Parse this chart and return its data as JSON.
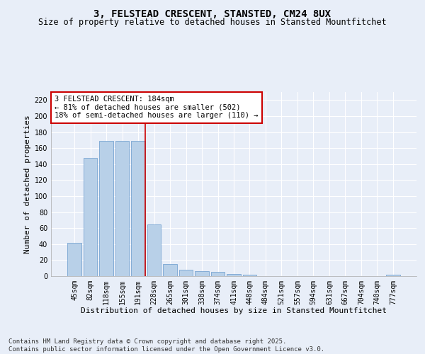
{
  "title": "3, FELSTEAD CRESCENT, STANSTED, CM24 8UX",
  "subtitle": "Size of property relative to detached houses in Stansted Mountfitchet",
  "xlabel": "Distribution of detached houses by size in Stansted Mountfitchet",
  "ylabel": "Number of detached properties",
  "categories": [
    "45sqm",
    "82sqm",
    "118sqm",
    "155sqm",
    "191sqm",
    "228sqm",
    "265sqm",
    "301sqm",
    "338sqm",
    "374sqm",
    "411sqm",
    "448sqm",
    "484sqm",
    "521sqm",
    "557sqm",
    "594sqm",
    "631sqm",
    "667sqm",
    "704sqm",
    "740sqm",
    "777sqm"
  ],
  "values": [
    42,
    148,
    169,
    169,
    169,
    65,
    15,
    8,
    6,
    5,
    3,
    2,
    0,
    0,
    0,
    0,
    0,
    0,
    0,
    0,
    2
  ],
  "bar_color": "#b8d0e8",
  "bar_edge_color": "#6699cc",
  "vline_x_index": 4,
  "vline_color": "#cc0000",
  "annotation_text": "3 FELSTEAD CRESCENT: 184sqm\n← 81% of detached houses are smaller (502)\n18% of semi-detached houses are larger (110) →",
  "annotation_box_color": "#ffffff",
  "annotation_box_edge_color": "#cc0000",
  "ylim": [
    0,
    230
  ],
  "yticks": [
    0,
    20,
    40,
    60,
    80,
    100,
    120,
    140,
    160,
    180,
    200,
    220
  ],
  "background_color": "#e8eef8",
  "grid_color": "#ffffff",
  "footer_text": "Contains HM Land Registry data © Crown copyright and database right 2025.\nContains public sector information licensed under the Open Government Licence v3.0.",
  "title_fontsize": 10,
  "subtitle_fontsize": 8.5,
  "xlabel_fontsize": 8,
  "ylabel_fontsize": 8,
  "tick_fontsize": 7,
  "annotation_fontsize": 7.5,
  "footer_fontsize": 6.5
}
